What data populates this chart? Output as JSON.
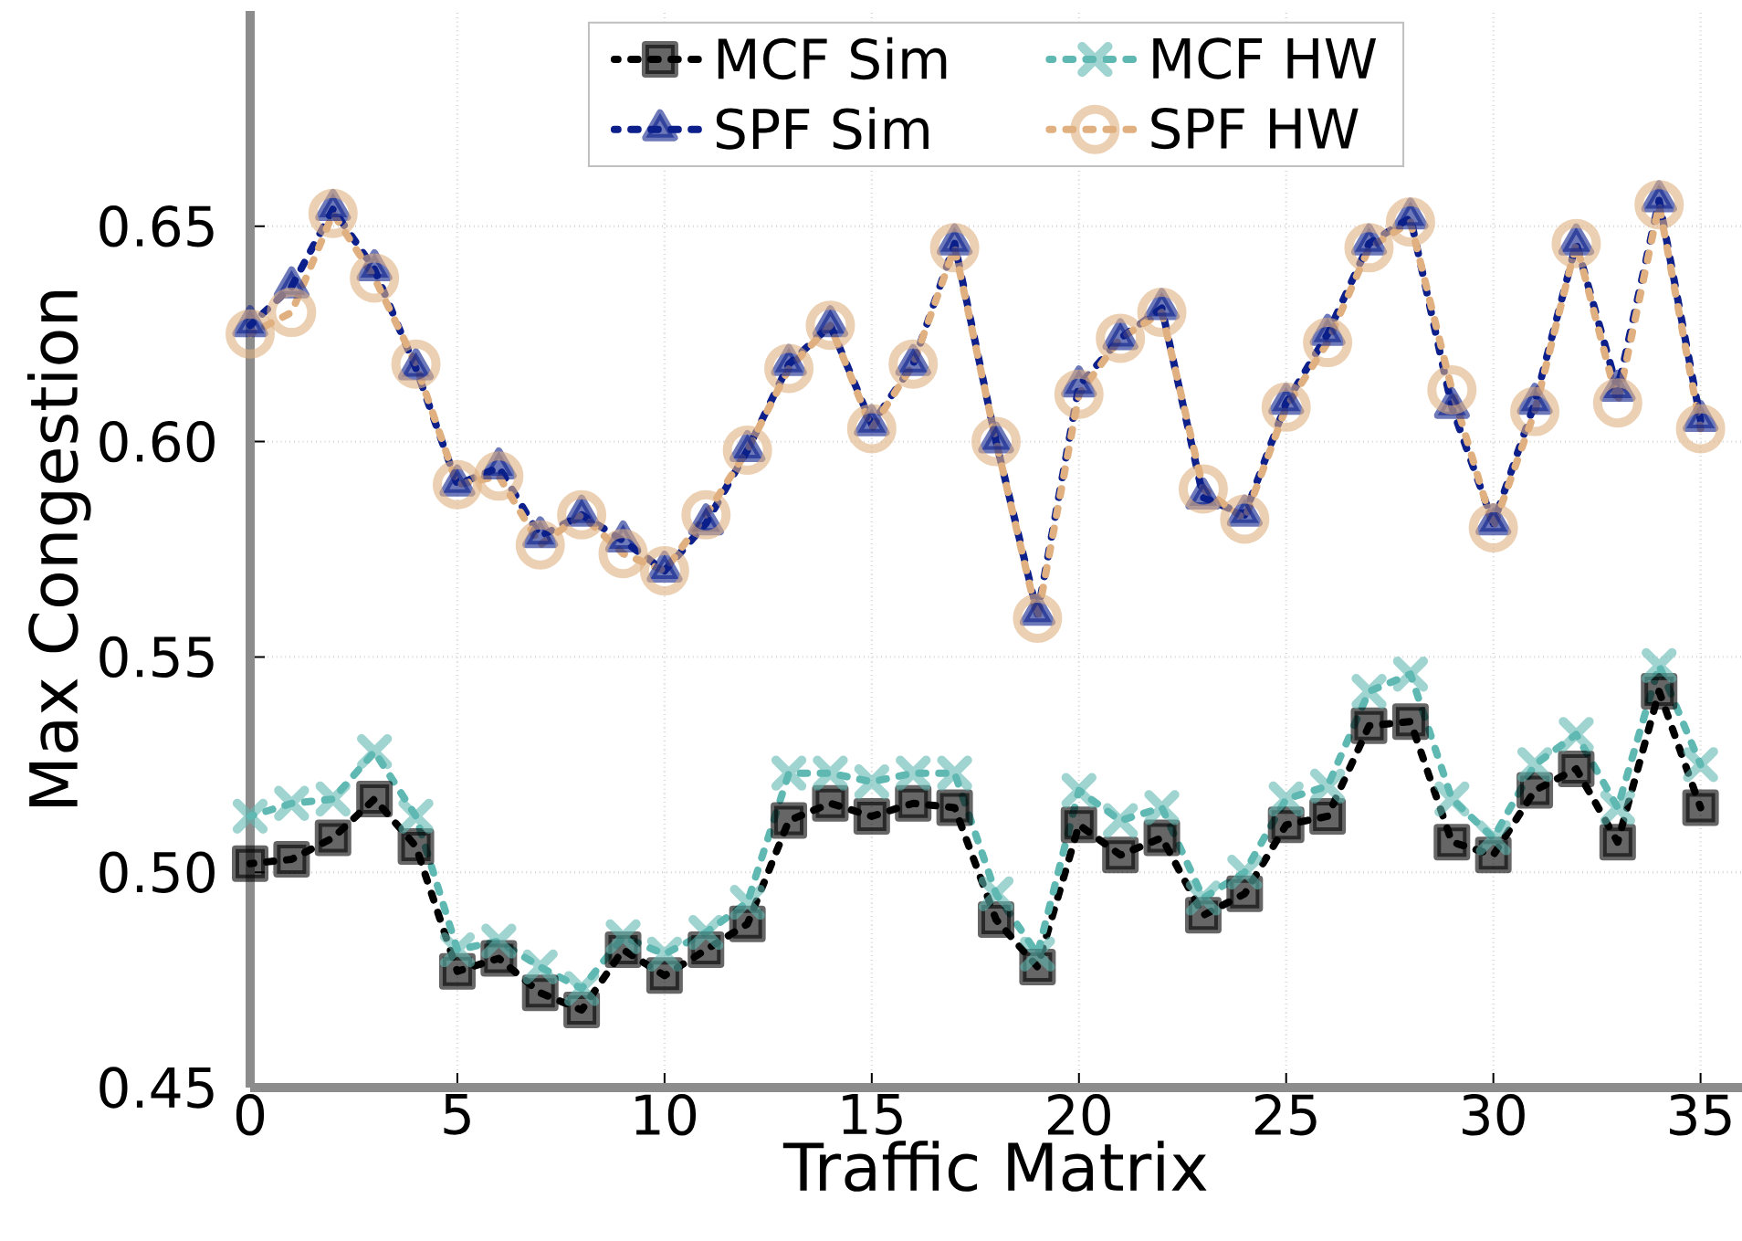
{
  "chart_data": {
    "type": "line",
    "xlabel": "Traffic Matrix",
    "ylabel": "Max Congestion",
    "x": [
      0,
      1,
      2,
      3,
      4,
      5,
      6,
      7,
      8,
      9,
      10,
      11,
      12,
      13,
      14,
      15,
      16,
      17,
      18,
      19,
      20,
      21,
      22,
      23,
      24,
      25,
      26,
      27,
      28,
      29,
      30,
      31,
      32,
      33,
      34,
      35
    ],
    "xlim": [
      0,
      36
    ],
    "ylim": [
      0.45,
      0.7
    ],
    "xticks": [
      0,
      5,
      10,
      15,
      20,
      25,
      30,
      35
    ],
    "yticks": [
      {
        "value": 0.45,
        "label": "0.45"
      },
      {
        "value": 0.5,
        "label": "0.50"
      },
      {
        "value": 0.55,
        "label": "0.55"
      },
      {
        "value": 0.6,
        "label": "0.60"
      },
      {
        "value": 0.65,
        "label": "0.65"
      }
    ],
    "grid": true,
    "legend": "top",
    "series": [
      {
        "name": "MCF Sim",
        "color": "#000000",
        "marker": "square",
        "line_style": "dashed",
        "values": [
          0.502,
          0.503,
          0.508,
          0.517,
          0.506,
          0.477,
          0.48,
          0.472,
          0.468,
          0.482,
          0.476,
          0.482,
          0.488,
          0.512,
          0.516,
          0.513,
          0.516,
          0.515,
          0.489,
          0.478,
          0.511,
          0.504,
          0.508,
          0.49,
          0.495,
          0.511,
          0.513,
          0.534,
          0.535,
          0.507,
          0.504,
          0.519,
          0.524,
          0.507,
          0.542,
          0.515
        ]
      },
      {
        "name": "SPF Sim",
        "color": "#0c1f8a",
        "marker": "triangle",
        "line_style": "dashed",
        "values": [
          0.627,
          0.636,
          0.654,
          0.64,
          0.617,
          0.59,
          0.594,
          0.578,
          0.583,
          0.577,
          0.57,
          0.581,
          0.598,
          0.618,
          0.627,
          0.604,
          0.618,
          0.646,
          0.6,
          0.56,
          0.613,
          0.624,
          0.631,
          0.587,
          0.583,
          0.609,
          0.625,
          0.646,
          0.652,
          0.608,
          0.581,
          0.609,
          0.646,
          0.612,
          0.656,
          0.605
        ]
      },
      {
        "name": "MCF HW",
        "color": "#5fb8b2",
        "marker": "cross",
        "line_style": "dashed",
        "values": [
          0.513,
          0.516,
          0.517,
          0.528,
          0.513,
          0.482,
          0.484,
          0.478,
          0.473,
          0.485,
          0.481,
          0.486,
          0.493,
          0.523,
          0.523,
          0.521,
          0.523,
          0.523,
          0.495,
          0.481,
          0.519,
          0.512,
          0.515,
          0.494,
          0.5,
          0.517,
          0.52,
          0.542,
          0.546,
          0.517,
          0.508,
          0.525,
          0.532,
          0.515,
          0.548,
          0.525
        ]
      },
      {
        "name": "SPF HW",
        "color": "#e0b080",
        "marker": "circle",
        "line_style": "dashed",
        "values": [
          0.625,
          0.63,
          0.653,
          0.638,
          0.618,
          0.59,
          0.592,
          0.576,
          0.583,
          0.574,
          0.57,
          0.583,
          0.598,
          0.617,
          0.627,
          0.603,
          0.618,
          0.645,
          0.6,
          0.559,
          0.611,
          0.624,
          0.63,
          0.589,
          0.582,
          0.608,
          0.623,
          0.645,
          0.651,
          0.612,
          0.58,
          0.607,
          0.646,
          0.609,
          0.655,
          0.603
        ]
      }
    ]
  }
}
